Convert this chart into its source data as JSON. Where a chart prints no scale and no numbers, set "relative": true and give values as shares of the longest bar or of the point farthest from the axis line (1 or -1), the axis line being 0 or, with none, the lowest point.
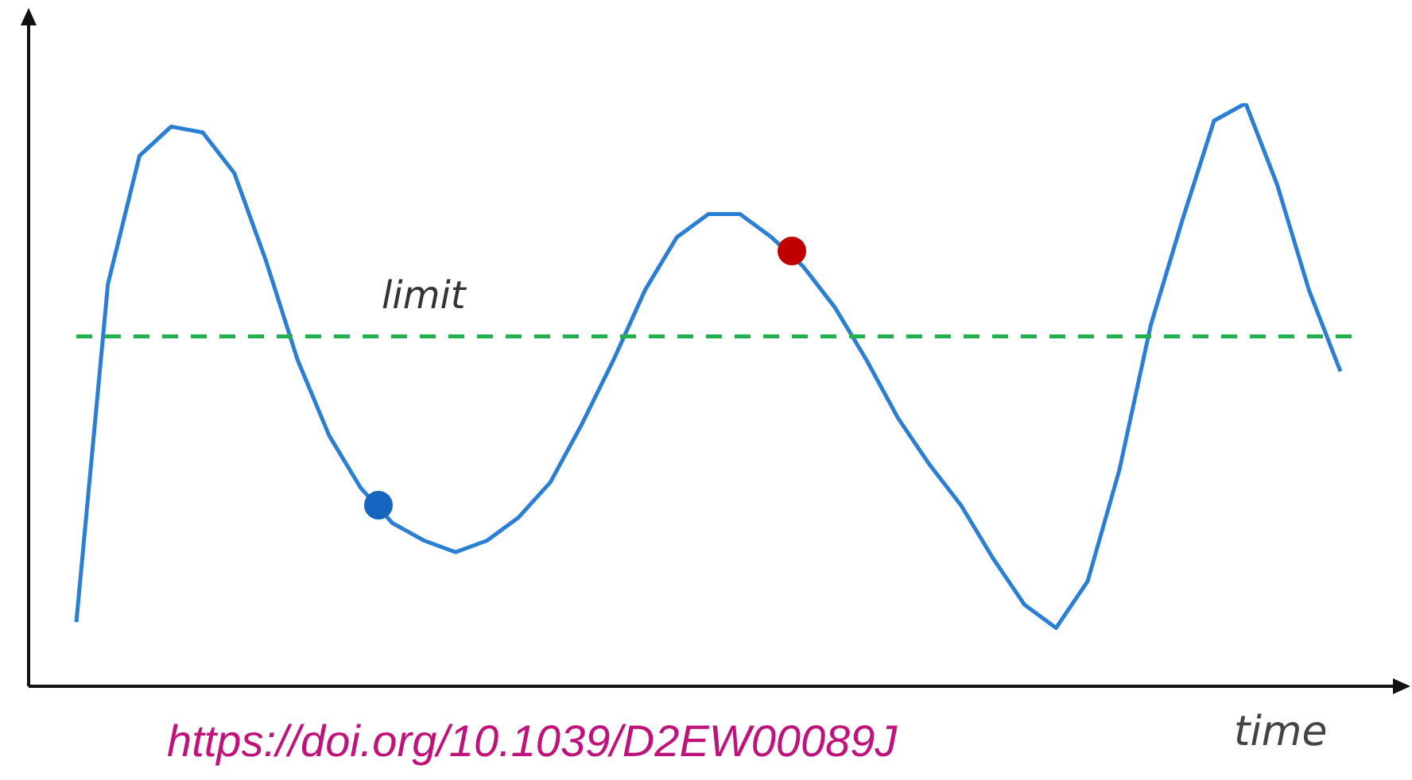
{
  "chart_data": {
    "type": "line",
    "relative": true,
    "xlabel": "time",
    "legend": false,
    "grid": false,
    "marker": "none",
    "line_style": "solid",
    "categories": [
      null,
      null,
      null,
      null,
      null,
      null,
      null,
      null,
      null,
      null,
      null,
      null,
      null,
      null,
      null,
      null,
      null,
      null,
      null,
      null,
      null,
      null,
      null,
      null,
      null,
      null,
      null,
      null,
      null,
      null,
      null,
      null,
      null,
      null,
      null,
      null,
      null,
      null,
      null,
      null,
      null
    ],
    "series": [
      {
        "color": "#2a7fd4",
        "values": [
          0.11,
          0.69,
          0.91,
          0.96,
          0.95,
          0.88,
          0.73,
          0.56,
          0.43,
          0.34,
          0.28,
          0.25,
          0.23,
          0.25,
          0.29,
          0.35,
          0.45,
          0.56,
          0.68,
          0.77,
          0.81,
          0.81,
          0.77,
          0.72,
          0.65,
          0.56,
          0.46,
          0.38,
          0.31,
          0.22,
          0.14,
          0.1,
          0.18,
          0.37,
          0.62,
          0.8,
          0.97,
          1.0,
          0.86,
          0.68,
          0.54
        ]
      }
    ],
    "ref_lines": [
      {
        "axis": "y",
        "value": 0.6,
        "label": "limit",
        "color": "#22b14c",
        "line_style": "dashed"
      }
    ],
    "annotations": [
      "https://doi.org/10.1039/D2EW00089J"
    ]
  }
}
